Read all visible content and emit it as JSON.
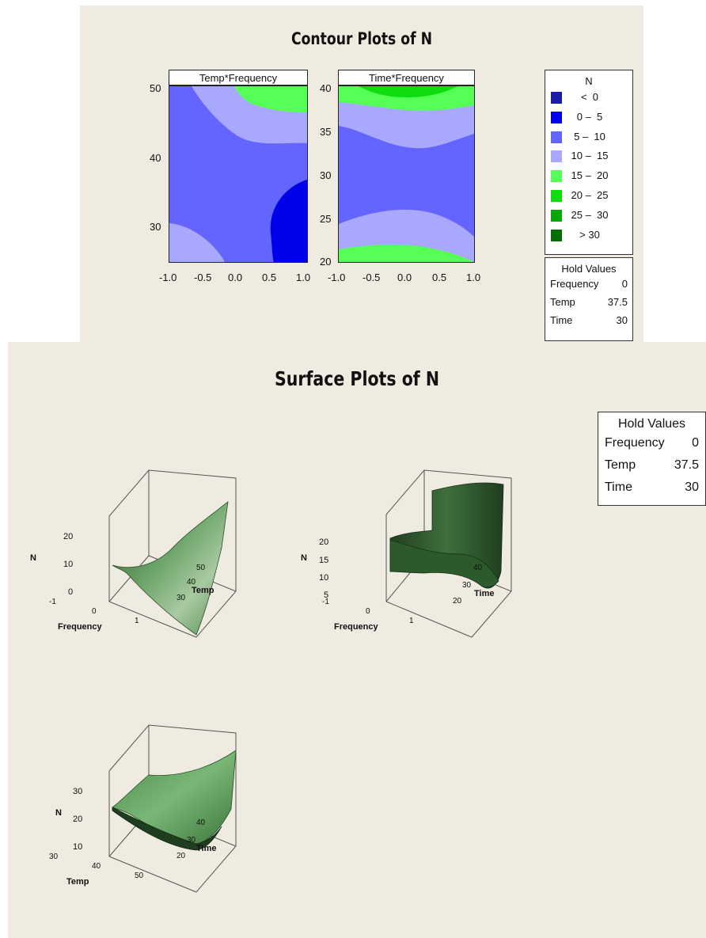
{
  "contour": {
    "title": "Contour Plots of N",
    "plots": [
      {
        "label": "Temp*Frequency",
        "x_ticks": [
          "-1.0",
          "-0.5",
          "0.0",
          "0.5",
          "1.0"
        ],
        "y_ticks": [
          "50",
          "40",
          "30"
        ]
      },
      {
        "label": "Time*Frequency",
        "x_ticks": [
          "-1.0",
          "-0.5",
          "0.0",
          "0.5",
          "1.0"
        ],
        "y_ticks": [
          "40",
          "35",
          "30",
          "25",
          "20"
        ]
      }
    ],
    "legend": {
      "title": "N",
      "items": [
        {
          "label": "<  0",
          "color": "#1c1ca8"
        },
        {
          "label": "0 –  5",
          "color": "#0000ea"
        },
        {
          "label": "5 –  10",
          "color": "#6464ff"
        },
        {
          "label": "10 –  15",
          "color": "#a8a8ff"
        },
        {
          "label": "15 –  20",
          "color": "#55ff55"
        },
        {
          "label": "20 –  25",
          "color": "#10dd10"
        },
        {
          "label": "25 –  30",
          "color": "#07a707"
        },
        {
          "label": "> 30",
          "color": "#056e05"
        }
      ]
    },
    "hold_values": {
      "title": "Hold Values",
      "rows": [
        {
          "name": "Frequency",
          "value": "0"
        },
        {
          "name": "Temp",
          "value": "37.5"
        },
        {
          "name": "Time",
          "value": "30"
        }
      ]
    }
  },
  "surface": {
    "title": "Surface Plots of N",
    "hold_values": {
      "title": "Hold Values",
      "rows": [
        {
          "name": "Frequency",
          "value": "0"
        },
        {
          "name": "Temp",
          "value": "37.5"
        },
        {
          "name": "Time",
          "value": "30"
        }
      ]
    },
    "plots": [
      {
        "z_label": "N",
        "z_ticks": [
          "20",
          "10",
          "0"
        ],
        "x_label": "Frequency",
        "x_ticks": [
          "-1",
          "0",
          "1"
        ],
        "y_label": "Temp",
        "y_ticks": [
          "50",
          "40",
          "30"
        ]
      },
      {
        "z_label": "N",
        "z_ticks": [
          "20",
          "15",
          "10",
          "5"
        ],
        "x_label": "Frequency",
        "x_ticks": [
          "-1",
          "0",
          "1"
        ],
        "y_label": "Time",
        "y_ticks": [
          "40",
          "30",
          "20"
        ]
      },
      {
        "z_label": "N",
        "z_ticks": [
          "30",
          "20",
          "10"
        ],
        "x_label": "Temp",
        "x_ticks": [
          "30",
          "40",
          "50"
        ],
        "y_label": "Time",
        "y_ticks": [
          "40",
          "30",
          "20"
        ]
      }
    ]
  },
  "chart_data": [
    {
      "type": "heatmap",
      "title": "Contour Plots of N",
      "panel": "Temp*Frequency",
      "x": "Frequency",
      "y": "Temp",
      "xlim": [
        -1.0,
        1.0
      ],
      "ylim": [
        25,
        50
      ],
      "levels": [
        "< 0",
        "0 – 5",
        "5 – 10",
        "10 – 15",
        "15 – 20",
        "20 – 25",
        "25 – 30",
        "> 30"
      ]
    },
    {
      "type": "heatmap",
      "title": "Contour Plots of N",
      "panel": "Time*Frequency",
      "x": "Frequency",
      "y": "Time",
      "xlim": [
        -1.0,
        1.0
      ],
      "ylim": [
        20,
        40
      ],
      "levels": [
        "< 0",
        "0 – 5",
        "5 – 10",
        "10 – 15",
        "15 – 20",
        "20 – 25",
        "25 – 30",
        "> 30"
      ]
    },
    {
      "type": "area",
      "title": "Surface Plots of N",
      "x": "Frequency",
      "y": "Temp",
      "z": "N",
      "zlim": [
        0,
        20
      ]
    },
    {
      "type": "area",
      "title": "Surface Plots of N",
      "x": "Frequency",
      "y": "Time",
      "z": "N",
      "zlim": [
        5,
        20
      ]
    },
    {
      "type": "area",
      "title": "Surface Plots of N",
      "x": "Temp",
      "y": "Time",
      "z": "N",
      "zlim": [
        10,
        30
      ]
    }
  ]
}
